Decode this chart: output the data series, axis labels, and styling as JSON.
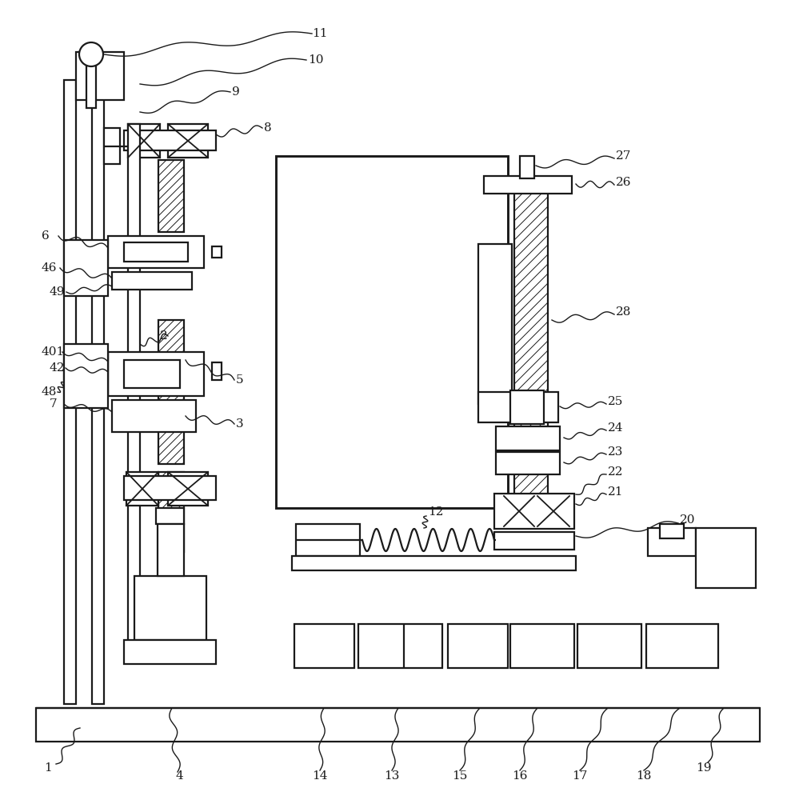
{
  "bg_color": "#ffffff",
  "lc": "#1a1a1a",
  "lw": 1.6,
  "label_fs": 11,
  "fig_w": 9.95,
  "fig_h": 10.0
}
